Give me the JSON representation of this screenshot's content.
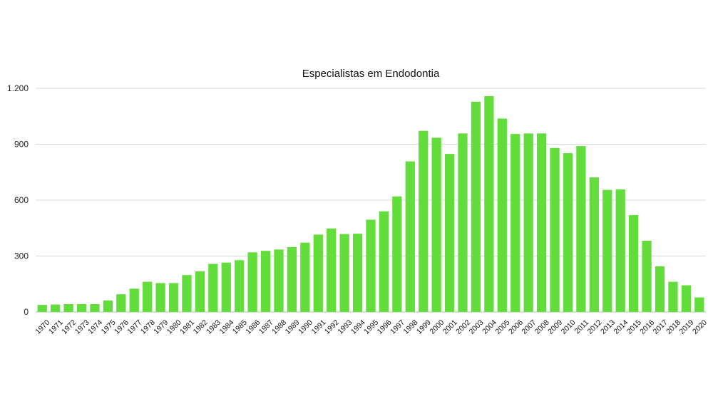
{
  "chart_data": {
    "type": "bar",
    "title": "Especialistas em Endodontia",
    "xlabel": "",
    "ylabel": "",
    "ylim": [
      0,
      1200
    ],
    "yticks": [
      0,
      300,
      600,
      900,
      1200
    ],
    "ytick_labels": [
      "0",
      "300",
      "600",
      "900",
      "1.200"
    ],
    "grid": true,
    "legend": "none",
    "bar_color": "#63dd3b",
    "categories": [
      "1970",
      "1971",
      "1972",
      "1973",
      "1974",
      "1975",
      "1976",
      "1977",
      "1978",
      "1979",
      "1980",
      "1981",
      "1982",
      "1983",
      "1984",
      "1985",
      "1986",
      "1987",
      "1988",
      "1989",
      "1990",
      "1991",
      "1992",
      "1993",
      "1994",
      "1995",
      "1996",
      "1997",
      "1998",
      "1999",
      "2000",
      "2001",
      "2002",
      "2003",
      "2004",
      "2005",
      "2006",
      "2007",
      "2008",
      "2009",
      "2010",
      "2011",
      "2012",
      "2013",
      "2014",
      "2015",
      "2016",
      "2017",
      "2018",
      "2019",
      "2020"
    ],
    "values": [
      38,
      40,
      42,
      42,
      42,
      62,
      95,
      125,
      162,
      155,
      155,
      198,
      218,
      258,
      265,
      278,
      320,
      328,
      335,
      348,
      372,
      415,
      448,
      418,
      420,
      495,
      540,
      620,
      808,
      972,
      935,
      848,
      958,
      1128,
      1158,
      1038,
      955,
      958,
      958,
      880,
      852,
      890,
      722,
      655,
      658,
      520,
      382,
      245,
      162,
      143,
      78
    ]
  }
}
